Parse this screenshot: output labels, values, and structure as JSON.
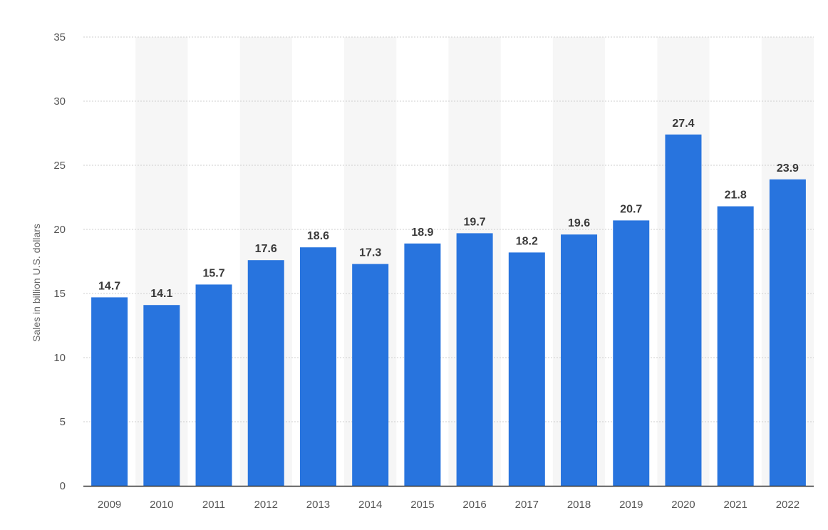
{
  "chart_data": {
    "type": "bar",
    "title": "",
    "xlabel": "",
    "ylabel": "Sales in billion U.S. dollars",
    "categories": [
      "2009",
      "2010",
      "2011",
      "2012",
      "2013",
      "2014",
      "2015",
      "2016",
      "2017",
      "2018",
      "2019",
      "2020",
      "2021",
      "2022"
    ],
    "values": [
      14.7,
      14.1,
      15.7,
      17.6,
      18.6,
      17.3,
      18.9,
      19.7,
      18.2,
      19.6,
      20.7,
      27.4,
      21.8,
      23.9
    ],
    "data_labels": [
      "14.7",
      "14.1",
      "15.7",
      "17.6",
      "18.6",
      "17.3",
      "18.9",
      "19.7",
      "18.2",
      "19.6",
      "20.7",
      "27.4",
      "21.8",
      "23.9"
    ],
    "ylim": [
      0,
      35
    ],
    "yticks": [
      "0",
      "5",
      "10",
      "15",
      "20",
      "25",
      "30",
      "35"
    ],
    "grid": true,
    "legend": "none",
    "colors": {
      "bar": "#2874de",
      "alt_band": "#f6f6f6",
      "grid": "#cfcfcf",
      "axis": "#333333"
    }
  }
}
